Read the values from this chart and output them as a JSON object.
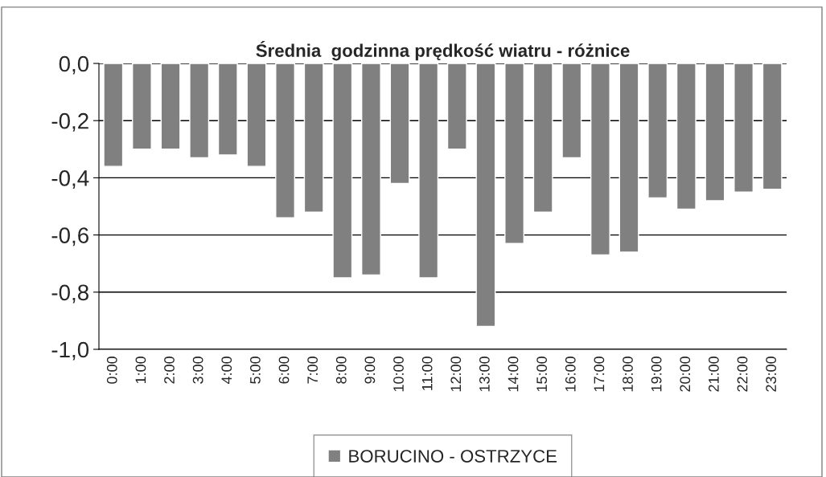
{
  "chart_data": {
    "type": "bar",
    "title": "Średnia  godzinna prędkość wiatru - różnice",
    "categories": [
      "0:00",
      "1:00",
      "2:00",
      "3:00",
      "4:00",
      "5:00",
      "6:00",
      "7:00",
      "8:00",
      "9:00",
      "10:00",
      "11:00",
      "12:00",
      "13:00",
      "14:00",
      "15:00",
      "16:00",
      "17:00",
      "18:00",
      "19:00",
      "20:00",
      "21:00",
      "22:00",
      "23:00"
    ],
    "series": [
      {
        "name": "BORUCINO - OSTRZYCE",
        "color": "#808080",
        "values": [
          -0.36,
          -0.3,
          -0.3,
          -0.33,
          -0.32,
          -0.36,
          -0.54,
          -0.52,
          -0.75,
          -0.74,
          -0.42,
          -0.75,
          -0.3,
          -0.92,
          -0.63,
          -0.52,
          -0.33,
          -0.67,
          -0.66,
          -0.47,
          -0.51,
          -0.48,
          -0.45,
          -0.44
        ]
      }
    ],
    "ylim": [
      -1.0,
      0.0
    ],
    "yticks": [
      {
        "value": -1.0,
        "label": "-1,0"
      },
      {
        "value": -0.8,
        "label": "-0,8"
      },
      {
        "value": -0.6,
        "label": "-0,6"
      },
      {
        "value": -0.4,
        "label": "-0,4"
      },
      {
        "value": -0.2,
        "label": "-0,2"
      },
      {
        "value": 0.0,
        "label": "0,0"
      }
    ],
    "grid": "y",
    "legend": "bottom"
  }
}
